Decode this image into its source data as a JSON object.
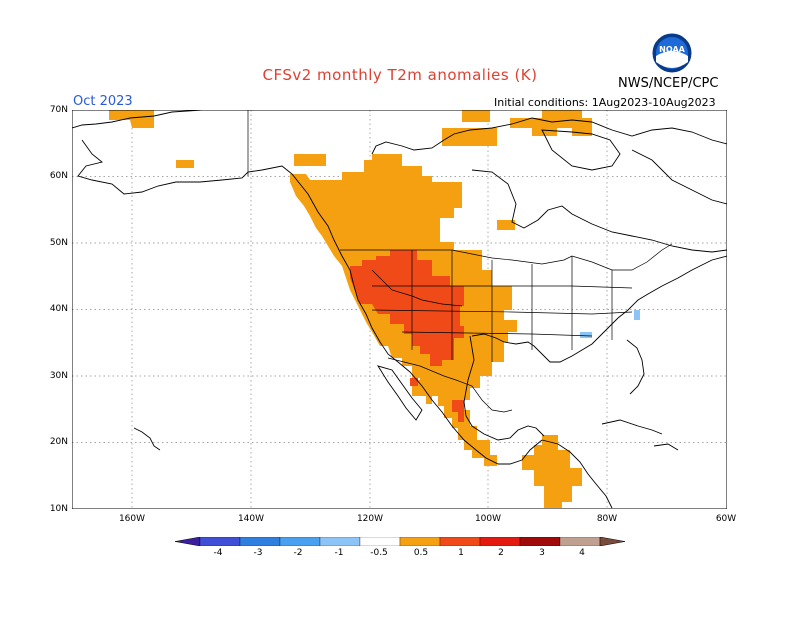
{
  "header": {
    "title": "CFSv2 monthly T2m anomalies (K)",
    "org": "NWS/NCEP/CPC",
    "month": "Oct 2023",
    "init": "Initial conditions: 1Aug2023-10Aug2023",
    "logo_text": "NOAA"
  },
  "axes": {
    "lat_labels": [
      "70N",
      "60N",
      "50N",
      "40N",
      "30N",
      "20N",
      "10N"
    ],
    "lon_labels": [
      "160W",
      "140W",
      "120W",
      "100W",
      "80W",
      "60W"
    ]
  },
  "colorbar": {
    "labels": [
      "-4",
      "-3",
      "-2",
      "-1",
      "-0.5",
      "0.5",
      "1",
      "2",
      "3",
      "4"
    ],
    "colors": [
      "#3a1fa0",
      "#3f4fd8",
      "#2f7fe0",
      "#4aa0f0",
      "#8cc4f8",
      "#ffffff",
      "#f5a010",
      "#f04a18",
      "#e41a10",
      "#a00a0a",
      "#c0a090",
      "#7a4a3a"
    ]
  },
  "map_data": {
    "type": "anomaly-map",
    "variable": "T2m anomalies (K)",
    "region": "North America",
    "anomaly_colors": {
      "0.5-1": "#f5a010",
      "1-2": "#f04a18"
    }
  }
}
